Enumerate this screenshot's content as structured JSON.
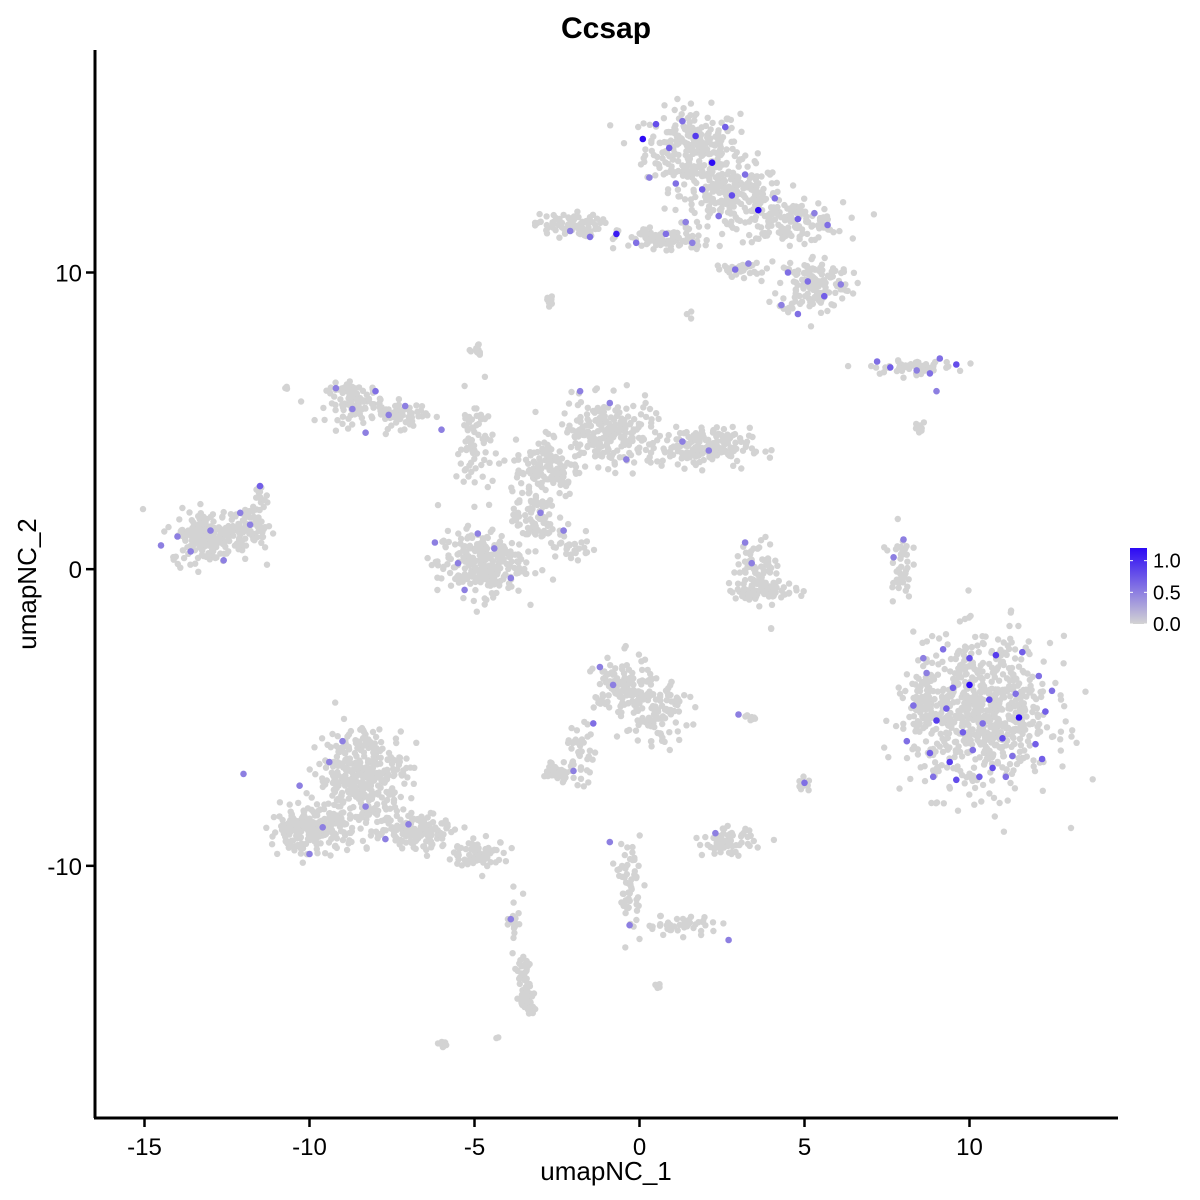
{
  "chart_data": {
    "type": "scatter",
    "title": "Ccsap",
    "xlabel": "umapNC_1",
    "ylabel": "umapNC_2",
    "xlim": [
      -16.5,
      14.5
    ],
    "ylim": [
      -18.5,
      17.5
    ],
    "x_ticks": [
      -15,
      -10,
      -5,
      0,
      5,
      10
    ],
    "x_tick_labels": [
      "-15",
      "-10",
      "-5",
      "0",
      "5",
      "10"
    ],
    "y_ticks": [
      -10,
      0,
      10
    ],
    "y_tick_labels": [
      "-10",
      "0",
      "10"
    ],
    "grid": false,
    "legend": {
      "placement": "right",
      "type": "colorbar",
      "labels": [
        "1.0",
        "0.5",
        "0.0"
      ],
      "values": [
        1.0,
        0.5,
        0.0
      ],
      "range": [
        0.0,
        1.2
      ],
      "low_color": "#d3d3d3",
      "high_color": "#2c0af5"
    },
    "expressing_points": [
      {
        "x": 0.1,
        "y": 14.5,
        "v": 1.2
      },
      {
        "x": 0.5,
        "y": 15.0,
        "v": 0.8
      },
      {
        "x": 0.9,
        "y": 14.2,
        "v": 0.7
      },
      {
        "x": 1.3,
        "y": 15.1,
        "v": 0.6
      },
      {
        "x": 1.7,
        "y": 14.6,
        "v": 0.9
      },
      {
        "x": 2.2,
        "y": 13.7,
        "v": 1.2
      },
      {
        "x": 2.6,
        "y": 14.9,
        "v": 0.7
      },
      {
        "x": 0.3,
        "y": 13.2,
        "v": 0.5
      },
      {
        "x": 1.1,
        "y": 13.0,
        "v": 0.6
      },
      {
        "x": 1.9,
        "y": 12.8,
        "v": 0.7
      },
      {
        "x": 2.8,
        "y": 12.6,
        "v": 0.8
      },
      {
        "x": 3.2,
        "y": 13.3,
        "v": 0.6
      },
      {
        "x": 3.6,
        "y": 12.1,
        "v": 1.2
      },
      {
        "x": 4.1,
        "y": 12.5,
        "v": 0.6
      },
      {
        "x": 4.8,
        "y": 11.8,
        "v": 0.7
      },
      {
        "x": 5.3,
        "y": 12.0,
        "v": 0.5
      },
      {
        "x": 5.7,
        "y": 11.6,
        "v": 0.6
      },
      {
        "x": 1.4,
        "y": 11.7,
        "v": 0.5
      },
      {
        "x": 0.8,
        "y": 11.3,
        "v": 0.6
      },
      {
        "x": -0.7,
        "y": 11.3,
        "v": 1.1
      },
      {
        "x": -0.1,
        "y": 11.0,
        "v": 0.6
      },
      {
        "x": -2.1,
        "y": 11.4,
        "v": 0.5
      },
      {
        "x": -1.5,
        "y": 11.2,
        "v": 0.6
      },
      {
        "x": 2.9,
        "y": 10.1,
        "v": 0.6
      },
      {
        "x": 3.3,
        "y": 10.3,
        "v": 0.5
      },
      {
        "x": 4.5,
        "y": 10.0,
        "v": 0.6
      },
      {
        "x": 5.1,
        "y": 9.7,
        "v": 0.6
      },
      {
        "x": 5.6,
        "y": 9.2,
        "v": 0.7
      },
      {
        "x": 6.1,
        "y": 9.6,
        "v": 0.5
      },
      {
        "x": 4.3,
        "y": 8.9,
        "v": 0.5
      },
      {
        "x": 4.8,
        "y": 8.6,
        "v": 0.6
      },
      {
        "x": 2.4,
        "y": 11.9,
        "v": 0.6
      },
      {
        "x": 1.6,
        "y": 11.0,
        "v": 0.5
      },
      {
        "x": 7.2,
        "y": 7.0,
        "v": 0.6
      },
      {
        "x": 7.6,
        "y": 6.8,
        "v": 0.7
      },
      {
        "x": 8.4,
        "y": 6.7,
        "v": 0.5
      },
      {
        "x": 9.1,
        "y": 7.1,
        "v": 0.6
      },
      {
        "x": 9.6,
        "y": 6.9,
        "v": 0.8
      },
      {
        "x": 8.8,
        "y": 6.6,
        "v": 0.6
      },
      {
        "x": 9.0,
        "y": 6.0,
        "v": 0.5
      },
      {
        "x": -4.9,
        "y": 1.2,
        "v": 0.5
      },
      {
        "x": -9.2,
        "y": 6.1,
        "v": 0.5
      },
      {
        "x": -8.7,
        "y": 5.4,
        "v": 0.5
      },
      {
        "x": -8.0,
        "y": 6.0,
        "v": 0.6
      },
      {
        "x": -7.6,
        "y": 5.2,
        "v": 0.5
      },
      {
        "x": -7.1,
        "y": 5.5,
        "v": 0.5
      },
      {
        "x": -8.3,
        "y": 4.6,
        "v": 0.5
      },
      {
        "x": -6.0,
        "y": 4.7,
        "v": 0.5
      },
      {
        "x": -1.8,
        "y": 6.0,
        "v": 0.5
      },
      {
        "x": -0.9,
        "y": 5.6,
        "v": 0.5
      },
      {
        "x": 1.3,
        "y": 4.3,
        "v": 0.5
      },
      {
        "x": 2.1,
        "y": 4.0,
        "v": 0.5
      },
      {
        "x": -0.4,
        "y": 3.7,
        "v": 0.5
      },
      {
        "x": -11.5,
        "y": 2.8,
        "v": 0.7
      },
      {
        "x": -12.1,
        "y": 1.9,
        "v": 0.5
      },
      {
        "x": -13.0,
        "y": 1.3,
        "v": 0.5
      },
      {
        "x": -13.6,
        "y": 0.6,
        "v": 0.5
      },
      {
        "x": -14.0,
        "y": 1.1,
        "v": 0.5
      },
      {
        "x": -12.6,
        "y": 0.3,
        "v": 0.5
      },
      {
        "x": -11.8,
        "y": 1.5,
        "v": 0.5
      },
      {
        "x": -14.5,
        "y": 0.8,
        "v": 0.5
      },
      {
        "x": -6.2,
        "y": 0.9,
        "v": 0.5
      },
      {
        "x": -5.5,
        "y": 0.2,
        "v": 0.5
      },
      {
        "x": -4.4,
        "y": 0.7,
        "v": 0.5
      },
      {
        "x": -3.9,
        "y": -0.3,
        "v": 0.5
      },
      {
        "x": -5.3,
        "y": -0.7,
        "v": 0.5
      },
      {
        "x": -3.0,
        "y": 1.9,
        "v": 0.5
      },
      {
        "x": -2.3,
        "y": 1.3,
        "v": 0.5
      },
      {
        "x": 3.2,
        "y": 0.9,
        "v": 0.5
      },
      {
        "x": 3.4,
        "y": 0.2,
        "v": 0.5
      },
      {
        "x": 8.0,
        "y": 1.0,
        "v": 0.5
      },
      {
        "x": 7.7,
        "y": 0.4,
        "v": 0.5
      },
      {
        "x": 9.2,
        "y": -2.7,
        "v": 0.6
      },
      {
        "x": 10.0,
        "y": -3.0,
        "v": 0.8
      },
      {
        "x": 10.8,
        "y": -2.9,
        "v": 0.9
      },
      {
        "x": 11.6,
        "y": -2.8,
        "v": 0.7
      },
      {
        "x": 12.1,
        "y": -3.6,
        "v": 0.6
      },
      {
        "x": 8.7,
        "y": -3.5,
        "v": 0.5
      },
      {
        "x": 9.5,
        "y": -4.0,
        "v": 0.7
      },
      {
        "x": 10.0,
        "y": -3.9,
        "v": 1.3
      },
      {
        "x": 10.6,
        "y": -4.4,
        "v": 0.8
      },
      {
        "x": 11.4,
        "y": -4.2,
        "v": 0.6
      },
      {
        "x": 12.3,
        "y": -4.8,
        "v": 0.7
      },
      {
        "x": 8.3,
        "y": -4.6,
        "v": 0.6
      },
      {
        "x": 9.0,
        "y": -5.1,
        "v": 0.9
      },
      {
        "x": 9.8,
        "y": -5.5,
        "v": 0.7
      },
      {
        "x": 10.4,
        "y": -5.2,
        "v": 0.6
      },
      {
        "x": 11.0,
        "y": -5.7,
        "v": 0.8
      },
      {
        "x": 11.5,
        "y": -5.0,
        "v": 1.2
      },
      {
        "x": 12.0,
        "y": -5.9,
        "v": 0.7
      },
      {
        "x": 8.1,
        "y": -5.8,
        "v": 0.6
      },
      {
        "x": 8.8,
        "y": -6.2,
        "v": 0.7
      },
      {
        "x": 9.4,
        "y": -6.5,
        "v": 0.9
      },
      {
        "x": 10.1,
        "y": -6.1,
        "v": 0.6
      },
      {
        "x": 10.7,
        "y": -6.7,
        "v": 0.8
      },
      {
        "x": 11.3,
        "y": -6.3,
        "v": 0.6
      },
      {
        "x": 12.2,
        "y": -6.4,
        "v": 0.7
      },
      {
        "x": 8.9,
        "y": -7.0,
        "v": 0.6
      },
      {
        "x": 9.6,
        "y": -7.1,
        "v": 0.8
      },
      {
        "x": 10.3,
        "y": -7.0,
        "v": 0.7
      },
      {
        "x": 11.1,
        "y": -7.0,
        "v": 0.6
      },
      {
        "x": 8.6,
        "y": -3.0,
        "v": 0.5
      },
      {
        "x": 12.5,
        "y": -4.1,
        "v": 0.6
      },
      {
        "x": 9.3,
        "y": -4.7,
        "v": 0.7
      },
      {
        "x": -12.0,
        "y": -6.9,
        "v": 0.5
      },
      {
        "x": -9.0,
        "y": -5.8,
        "v": 0.5
      },
      {
        "x": -9.4,
        "y": -6.5,
        "v": 0.5
      },
      {
        "x": -10.0,
        "y": -9.6,
        "v": 0.5
      },
      {
        "x": -9.6,
        "y": -8.7,
        "v": 0.5
      },
      {
        "x": -8.3,
        "y": -8.0,
        "v": 0.5
      },
      {
        "x": -7.7,
        "y": -9.1,
        "v": 0.5
      },
      {
        "x": -7.0,
        "y": -8.6,
        "v": 0.5
      },
      {
        "x": -10.3,
        "y": -7.3,
        "v": 0.5
      },
      {
        "x": -1.2,
        "y": -3.3,
        "v": 0.5
      },
      {
        "x": -0.8,
        "y": -3.9,
        "v": 0.5
      },
      {
        "x": -1.4,
        "y": -5.2,
        "v": 0.6
      },
      {
        "x": -2.0,
        "y": -6.8,
        "v": 0.5
      },
      {
        "x": 3.0,
        "y": -4.9,
        "v": 0.5
      },
      {
        "x": 5.0,
        "y": -7.2,
        "v": 0.6
      },
      {
        "x": 2.3,
        "y": -8.9,
        "v": 0.5
      },
      {
        "x": 2.7,
        "y": -12.5,
        "v": 0.5
      },
      {
        "x": -0.9,
        "y": -9.2,
        "v": 0.5
      },
      {
        "x": -0.3,
        "y": -12.0,
        "v": 0.5
      },
      {
        "x": -3.9,
        "y": -11.8,
        "v": 0.5
      }
    ]
  }
}
